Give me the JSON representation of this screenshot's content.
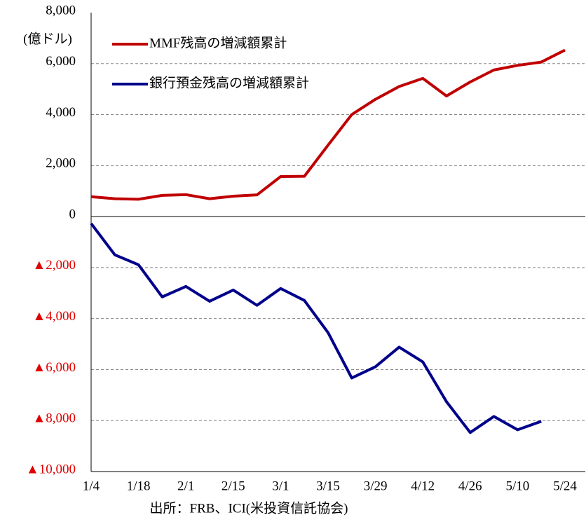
{
  "chart_data": {
    "type": "line",
    "y_unit_label": "(億ドル)",
    "source": "出所：FRB、ICI(米投資信託協会)",
    "categories": [
      "1/4",
      null,
      "1/18",
      null,
      "2/1",
      null,
      "2/15",
      null,
      "3/1",
      null,
      "3/15",
      null,
      "3/29",
      null,
      "4/12",
      null,
      "4/26",
      null,
      "5/10",
      null,
      "5/24"
    ],
    "series": [
      {
        "name": "MMF残高の増減額累計",
        "color": "#c00000",
        "values": [
          780,
          700,
          680,
          830,
          860,
          700,
          800,
          850,
          1570,
          1580,
          2800,
          4000,
          4600,
          5100,
          5420,
          4730,
          5280,
          5750,
          5930,
          6060,
          6530
        ]
      },
      {
        "name": "銀行預金残高の増減額累計",
        "color": "#00008b",
        "values": [
          -270,
          -1500,
          -1890,
          -3150,
          -2740,
          -3320,
          -2880,
          -3480,
          -2820,
          -3290,
          -4550,
          -6330,
          -5890,
          -5120,
          -5700,
          -7260,
          -8470,
          -7840,
          -8360,
          -8030,
          null
        ]
      }
    ],
    "ylim": [
      -10000,
      8000
    ],
    "yticks": [
      {
        "value": -10000,
        "label": "▲10,000"
      },
      {
        "value": -8000,
        "label": "▲8,000"
      },
      {
        "value": -6000,
        "label": "▲6,000"
      },
      {
        "value": -4000,
        "label": "▲4,000"
      },
      {
        "value": -2000,
        "label": "▲2,000"
      },
      0,
      {
        "value": 2000,
        "label": "2,000"
      },
      {
        "value": 4000,
        "label": "4,000"
      },
      {
        "value": 6000,
        "label": "6,000"
      },
      {
        "value": 8000,
        "label": "8,000"
      }
    ],
    "negative_tick_color": "#e00000",
    "grid": true,
    "legend": "upper left"
  }
}
